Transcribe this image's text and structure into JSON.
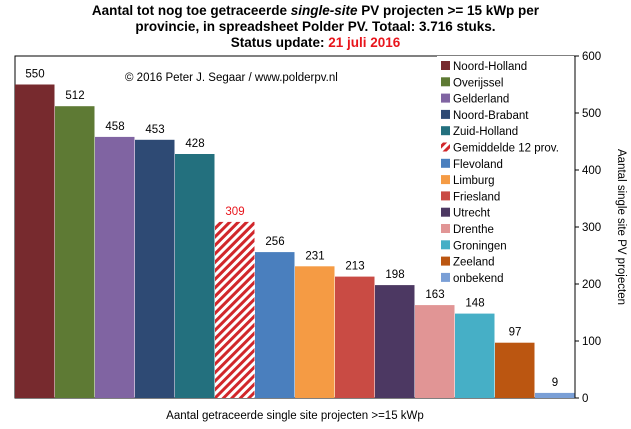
{
  "title": {
    "line1_a": "Aantal tot nog toe getraceerde ",
    "line1_em": "single-site",
    "line1_b": " PV projecten >= 15 kWp per",
    "line2": "provincie, in spreadsheet Polder PV. Totaal: 3.716 stuks.",
    "line3_a": "Status update: ",
    "line3_date": "21 juli 2016"
  },
  "copyright": "© 2016  Peter J. Segaar / www.polderpv.nl",
  "colors": {
    "date": "#e8151c",
    "highlight_label": "#e8151c"
  },
  "chart_data": {
    "type": "bar",
    "xlabel": "Aantal getraceerde single site projecten >=15 kWp",
    "ylabel": "Aantal single site PV projecten",
    "ylim": [
      0,
      600
    ],
    "yticks": [
      0,
      100,
      200,
      300,
      400,
      500,
      600
    ],
    "grid": false,
    "legend_position": "top-right",
    "categories": [
      "Noord-Holland",
      "Overijssel",
      "Gelderland",
      "Noord-Brabant",
      "Zuid-Holland",
      "Gemiddelde 12 prov.",
      "Flevoland",
      "Limburg",
      "Friesland",
      "Utrecht",
      "Drenthe",
      "Groningen",
      "Zeeland",
      "onbekend"
    ],
    "values": [
      550,
      512,
      458,
      453,
      428,
      309,
      256,
      231,
      213,
      198,
      163,
      148,
      97,
      9
    ],
    "colors": [
      "#772a2e",
      "#5e7a34",
      "#8064a2",
      "#2e4a74",
      "#23707e",
      "#d1272b",
      "#4a7fbe",
      "#f59b44",
      "#c94b44",
      "#4c3862",
      "#e19595",
      "#46afc6",
      "#bb5611",
      "#7a9fd6"
    ],
    "hatched": [
      false,
      false,
      false,
      false,
      false,
      true,
      false,
      false,
      false,
      false,
      false,
      false,
      false,
      false
    ],
    "label_highlight": [
      false,
      false,
      false,
      false,
      false,
      true,
      false,
      false,
      false,
      false,
      false,
      false,
      false,
      false
    ]
  }
}
